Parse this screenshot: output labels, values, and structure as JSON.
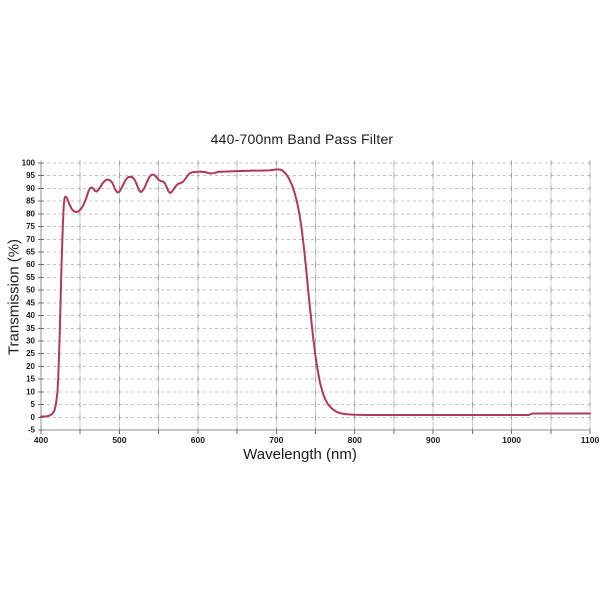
{
  "chart_data": {
    "type": "line",
    "title": "440-700nm Band Pass Filter",
    "xlabel": "Wavelength (nm)",
    "ylabel": "Transmission (%)",
    "xlim": [
      400,
      1100
    ],
    "ylim": [
      -5,
      100
    ],
    "x_tick_labels": [
      400,
      500,
      600,
      700,
      800,
      900,
      1000,
      1100
    ],
    "x_minor_step": 50,
    "y_tick_labels": [
      -5,
      0,
      5,
      10,
      15,
      20,
      25,
      30,
      35,
      40,
      45,
      50,
      55,
      60,
      65,
      70,
      75,
      80,
      85,
      90,
      95,
      100
    ],
    "y_tick_step": 5,
    "grid": "on",
    "legend": "none",
    "series": [
      {
        "name": "transmission",
        "x": [
          400,
          406,
          410,
          414,
          417,
          419,
          421,
          422,
          423,
          424,
          425,
          426,
          427,
          428,
          429,
          430,
          431,
          433,
          436,
          439,
          442,
          445,
          448,
          451,
          454,
          457,
          459,
          461,
          463,
          465,
          467,
          469,
          471,
          473,
          476,
          479,
          482,
          485,
          488,
          491,
          493,
          495,
          497,
          499,
          501,
          504,
          507,
          510,
          513,
          516,
          519,
          521,
          523,
          525,
          527,
          529,
          532,
          535,
          538,
          541,
          544,
          547,
          550,
          553,
          556,
          558,
          560,
          562,
          564,
          566,
          569,
          572,
          575,
          578,
          581,
          584,
          587,
          590,
          593,
          598,
          604,
          610,
          615,
          620,
          626,
          634,
          642,
          650,
          660,
          670,
          680,
          690,
          696,
          701,
          705,
          708,
          711,
          714,
          717,
          720,
          723,
          726,
          729,
          732,
          735,
          738,
          741,
          744,
          747,
          750,
          753,
          756,
          759,
          762,
          766,
          770,
          774,
          778,
          783,
          790,
          800,
          815,
          830,
          850,
          870,
          890,
          910,
          930,
          950,
          970,
          990,
          1010,
          1022,
          1027,
          1045,
          1065,
          1085,
          1100
        ],
        "y": [
          0.3,
          0.3,
          0.6,
          1.2,
          2.5,
          5,
          10,
          16,
          24,
          34,
          46,
          58,
          68,
          77,
          83,
          86,
          86.8,
          86.3,
          84,
          82,
          81,
          80.7,
          81,
          82,
          83.5,
          85.5,
          87.5,
          89.3,
          90.2,
          90.4,
          89.8,
          89,
          88.8,
          89.4,
          90.8,
          92.2,
          93.2,
          93.5,
          93.2,
          92.2,
          90.8,
          89.4,
          88.5,
          88.4,
          89.2,
          91,
          92.9,
          94.2,
          94.6,
          94.5,
          93.6,
          92.4,
          90.8,
          89.3,
          88.6,
          88.9,
          90.3,
          92.5,
          94.4,
          95.4,
          95.4,
          94.5,
          93.4,
          92.9,
          92.7,
          92,
          90.7,
          89.2,
          88.3,
          88.4,
          89.6,
          91,
          91.9,
          92.1,
          92.6,
          93.8,
          95.1,
          96,
          96.4,
          96.5,
          96.6,
          96.4,
          95.9,
          96,
          96.5,
          96.6,
          96.7,
          96.8,
          96.9,
          97,
          97,
          97.1,
          97.3,
          97.5,
          97.4,
          97,
          96.2,
          95,
          93.4,
          91.3,
          88.6,
          85.2,
          80.8,
          75,
          67.5,
          58.5,
          49,
          40,
          31.5,
          24,
          18,
          13.3,
          9.8,
          7.3,
          5.1,
          3.7,
          2.7,
          2,
          1.5,
          1.2,
          1,
          0.9,
          0.9,
          0.9,
          0.9,
          0.9,
          0.9,
          0.9,
          0.9,
          0.9,
          0.9,
          0.9,
          0.9,
          1.5,
          1.5,
          1.5,
          1.5,
          1.5
        ]
      }
    ],
    "colors": {
      "line": "#ad3a5b",
      "grid_vertical": "#cfcfcf",
      "grid_horizontal": "#c3c3c3",
      "grid_cross_tick": "#a0a0a0",
      "axis": "#8f8f8f",
      "tick": "#6e6e6e",
      "tick_label": "#1a1a1a"
    }
  }
}
